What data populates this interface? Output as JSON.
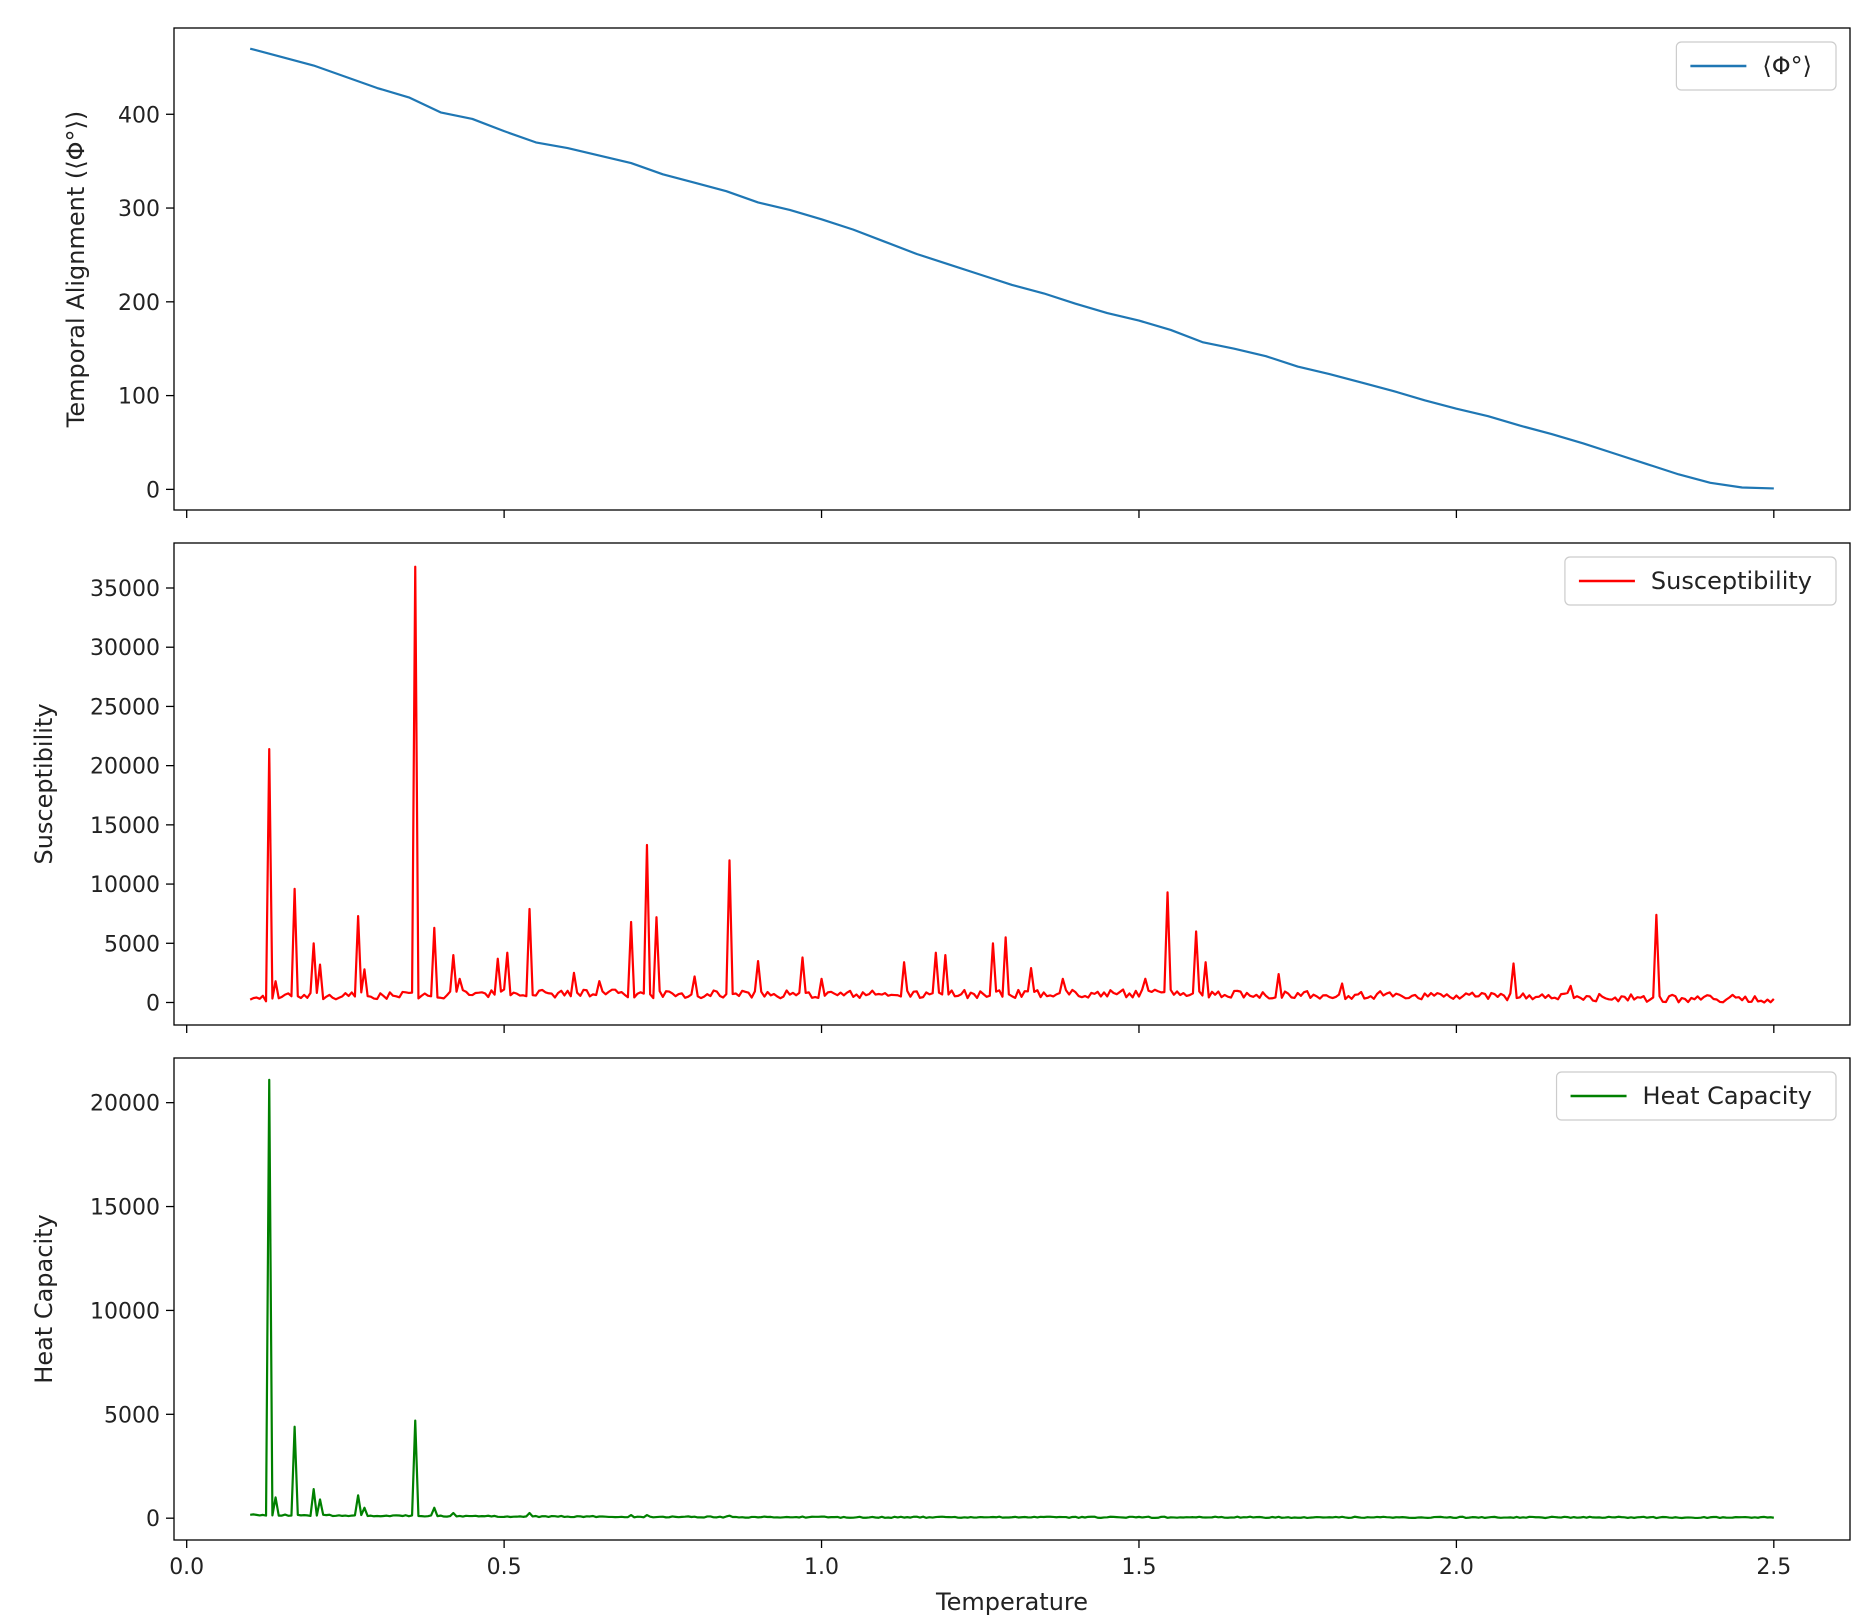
{
  "chart_data": [
    {
      "type": "line",
      "title": "",
      "xlabel": "",
      "ylabel": "Temporal Alignment (⟨Φ°⟩)",
      "xlim": [
        -0.02,
        2.62
      ],
      "ylim": [
        -22,
        492
      ],
      "xticks": [
        0.0,
        0.5,
        1.0,
        1.5,
        2.0,
        2.5
      ],
      "yticks": [
        0,
        100,
        200,
        300,
        400
      ],
      "ytick_labels": [
        "0",
        "100",
        "200",
        "300",
        "400"
      ],
      "xtick_labels_visible": false,
      "grid": false,
      "legend": {
        "position": "top-right",
        "entries": [
          "⟨Φ°⟩"
        ]
      },
      "series": [
        {
          "name": "⟨Φ°⟩",
          "color": "#1f77b4",
          "x": [
            0.1,
            0.15,
            0.2,
            0.25,
            0.3,
            0.35,
            0.4,
            0.45,
            0.5,
            0.55,
            0.6,
            0.65,
            0.7,
            0.75,
            0.8,
            0.85,
            0.9,
            0.95,
            1.0,
            1.05,
            1.1,
            1.15,
            1.2,
            1.25,
            1.3,
            1.35,
            1.4,
            1.45,
            1.5,
            1.55,
            1.6,
            1.65,
            1.7,
            1.75,
            1.8,
            1.85,
            1.9,
            1.95,
            2.0,
            2.05,
            2.1,
            2.15,
            2.2,
            2.25,
            2.3,
            2.35,
            2.4,
            2.45,
            2.5
          ],
          "values": [
            470,
            461,
            452,
            440,
            428,
            418,
            402,
            395,
            382,
            370,
            364,
            356,
            348,
            336,
            327,
            318,
            306,
            298,
            288,
            277,
            264,
            251,
            240,
            229,
            218,
            209,
            198,
            188,
            180,
            170,
            157,
            150,
            142,
            131,
            123,
            114,
            105,
            95,
            86,
            78,
            68,
            59,
            49,
            38,
            27,
            16,
            7,
            2,
            1
          ]
        }
      ]
    },
    {
      "type": "line",
      "title": "",
      "xlabel": "",
      "ylabel": "Susceptibility",
      "xlim": [
        -0.02,
        2.62
      ],
      "ylim": [
        -1900,
        38800
      ],
      "xticks": [
        0.0,
        0.5,
        1.0,
        1.5,
        2.0,
        2.5
      ],
      "yticks": [
        0,
        5000,
        10000,
        15000,
        20000,
        25000,
        30000,
        35000
      ],
      "ytick_labels": [
        "0",
        "5000",
        "10000",
        "15000",
        "20000",
        "25000",
        "30000",
        "35000"
      ],
      "xtick_labels_visible": false,
      "grid": false,
      "legend": {
        "position": "top-right",
        "entries": [
          "Susceptibility"
        ]
      },
      "series": [
        {
          "name": "Susceptibility",
          "color": "#ff0000",
          "baseline": [
            [
              0.1,
              300
            ],
            [
              0.5,
              700
            ],
            [
              1.0,
              600
            ],
            [
              1.5,
              700
            ],
            [
              2.0,
              500
            ],
            [
              2.5,
              200
            ]
          ],
          "peaks": [
            [
              0.13,
              21400
            ],
            [
              0.14,
              1800
            ],
            [
              0.17,
              9600
            ],
            [
              0.2,
              5000
            ],
            [
              0.21,
              3200
            ],
            [
              0.27,
              7300
            ],
            [
              0.28,
              2800
            ],
            [
              0.36,
              36800
            ],
            [
              0.39,
              6300
            ],
            [
              0.42,
              4000
            ],
            [
              0.43,
              2000
            ],
            [
              0.49,
              3700
            ],
            [
              0.505,
              4200
            ],
            [
              0.54,
              7900
            ],
            [
              0.61,
              2500
            ],
            [
              0.65,
              1800
            ],
            [
              0.7,
              6800
            ],
            [
              0.725,
              13300
            ],
            [
              0.74,
              7200
            ],
            [
              0.8,
              2200
            ],
            [
              0.855,
              12000
            ],
            [
              0.9,
              3500
            ],
            [
              0.97,
              3800
            ],
            [
              1.0,
              2000
            ],
            [
              1.13,
              3400
            ],
            [
              1.18,
              4200
            ],
            [
              1.195,
              4000
            ],
            [
              1.27,
              5000
            ],
            [
              1.29,
              5500
            ],
            [
              1.33,
              2900
            ],
            [
              1.38,
              2000
            ],
            [
              1.51,
              2000
            ],
            [
              1.545,
              9300
            ],
            [
              1.59,
              6000
            ],
            [
              1.605,
              3400
            ],
            [
              1.72,
              2400
            ],
            [
              1.82,
              1600
            ],
            [
              2.09,
              3300
            ],
            [
              2.18,
              1400
            ],
            [
              2.315,
              7400
            ]
          ],
          "noise_amplitude": 700,
          "end_point": [
            2.5,
            300
          ]
        }
      ]
    },
    {
      "type": "line",
      "title": "",
      "xlabel": "Temperature",
      "ylabel": "Heat Capacity",
      "xlim": [
        -0.02,
        2.62
      ],
      "ylim": [
        -1050,
        22150
      ],
      "xticks": [
        0.0,
        0.5,
        1.0,
        1.5,
        2.0,
        2.5
      ],
      "xtick_labels": [
        "0.0",
        "0.5",
        "1.0",
        "1.5",
        "2.0",
        "2.5"
      ],
      "yticks": [
        0,
        5000,
        10000,
        15000,
        20000
      ],
      "ytick_labels": [
        "0",
        "5000",
        "10000",
        "15000",
        "20000"
      ],
      "grid": false,
      "legend": {
        "position": "top-right",
        "entries": [
          "Heat Capacity"
        ]
      },
      "series": [
        {
          "name": "Heat Capacity",
          "color": "#008000",
          "baseline": [
            [
              0.1,
              150
            ],
            [
              0.5,
              80
            ],
            [
              1.0,
              40
            ],
            [
              2.5,
              30
            ]
          ],
          "peaks": [
            [
              0.13,
              21100
            ],
            [
              0.14,
              1000
            ],
            [
              0.17,
              4400
            ],
            [
              0.2,
              1400
            ],
            [
              0.21,
              900
            ],
            [
              0.27,
              1100
            ],
            [
              0.28,
              500
            ],
            [
              0.36,
              4700
            ],
            [
              0.39,
              500
            ],
            [
              0.42,
              250
            ],
            [
              0.54,
              250
            ],
            [
              0.7,
              150
            ],
            [
              0.725,
              150
            ],
            [
              0.855,
              120
            ]
          ],
          "noise_amplitude": 60,
          "end_point": [
            2.5,
            20
          ]
        }
      ]
    }
  ]
}
